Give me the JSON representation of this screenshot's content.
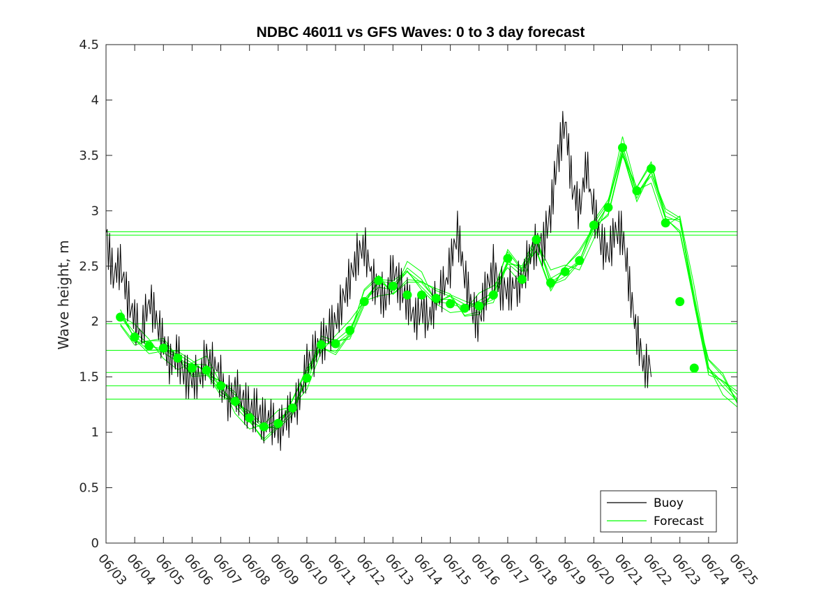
{
  "chart_data": {
    "type": "line",
    "title": "NDBC 46011 vs GFS Waves: 0 to 3 day forecast",
    "xlabel": "",
    "ylabel": "Wave height, m",
    "ylim": [
      0,
      4.5
    ],
    "yticks": [
      "0",
      "0.5",
      "1",
      "1.5",
      "2",
      "2.5",
      "3",
      "3.5",
      "4",
      "4.5"
    ],
    "xlim": [
      "06/03",
      "06/25"
    ],
    "xticks": [
      "06/03",
      "06/04",
      "06/05",
      "06/06",
      "06/07",
      "06/08",
      "06/09",
      "06/10",
      "06/11",
      "06/12",
      "06/13",
      "06/14",
      "06/15",
      "06/16",
      "06/17",
      "06/18",
      "06/19",
      "06/20",
      "06/21",
      "06/22",
      "06/23",
      "06/24",
      "06/25"
    ],
    "legend": {
      "position": "bottom-right",
      "entries": [
        "Buoy",
        "Forecast"
      ]
    },
    "colors": {
      "buoy": "#000000",
      "forecast": "#00ff00",
      "axes": "#262626"
    },
    "buoy_series": {
      "name": "Buoy",
      "day": [
        0.0,
        0.25,
        0.5,
        0.75,
        1.0,
        1.25,
        1.5,
        1.75,
        2.0,
        2.25,
        2.5,
        2.75,
        3.0,
        3.25,
        3.5,
        3.75,
        4.0,
        4.25,
        4.5,
        4.75,
        5.0,
        5.25,
        5.5,
        5.75,
        6.0,
        6.25,
        6.5,
        6.75,
        7.0,
        7.25,
        7.5,
        7.75,
        8.0,
        8.25,
        8.5,
        8.75,
        9.0,
        9.25,
        9.5,
        9.75,
        10.0,
        10.25,
        10.5,
        10.75,
        11.0,
        11.25,
        11.5,
        11.75,
        12.0,
        12.25,
        12.5,
        12.75,
        13.0,
        13.25,
        13.5,
        13.75,
        14.0,
        14.25,
        14.5,
        14.75,
        15.0,
        15.25,
        15.5,
        15.75,
        16.0,
        16.25,
        16.5,
        16.75,
        17.0,
        17.25,
        17.5,
        17.75,
        18.0,
        18.25,
        18.5,
        18.75,
        19.0,
        19.25,
        19.5,
        19.75,
        20.0,
        20.25,
        20.5,
        20.75,
        21.0,
        21.25,
        21.5,
        21.75,
        22.0
      ],
      "values": [
        2.8,
        2.4,
        2.5,
        2.2,
        2.0,
        1.9,
        2.2,
        2.0,
        1.8,
        1.6,
        1.7,
        1.5,
        1.5,
        1.5,
        1.7,
        1.6,
        1.5,
        1.3,
        1.4,
        1.3,
        1.2,
        1.2,
        1.1,
        1.1,
        1.0,
        1.1,
        1.2,
        1.3,
        1.6,
        1.7,
        1.8,
        1.9,
        2.0,
        2.2,
        2.4,
        2.6,
        2.7,
        2.4,
        2.3,
        2.2,
        2.5,
        2.3,
        2.2,
        2.0,
        2.1,
        2.0,
        2.2,
        2.3,
        2.5,
        2.8,
        2.4,
        2.1,
        2.0,
        2.3,
        2.5,
        2.3,
        2.3,
        2.3,
        2.4,
        2.6,
        2.7,
        2.7,
        3.0,
        3.5,
        3.8,
        3.2,
        3.0,
        3.4,
        3.0,
        2.7,
        2.6,
        2.8,
        2.8,
        2.3,
        1.9,
        1.6,
        1.6,
        null,
        null,
        null,
        null,
        null,
        null,
        null,
        null,
        null,
        null,
        null,
        null
      ]
    },
    "forecast_series": {
      "name": "Forecast",
      "day": [
        0.0,
        0.5,
        1.0,
        1.5,
        2.0,
        2.5,
        3.0,
        3.5,
        4.0,
        4.5,
        5.0,
        5.5,
        6.0,
        6.5,
        7.0,
        7.5,
        8.0,
        8.5,
        9.0,
        9.5,
        10.0,
        10.5,
        11.0,
        11.5,
        12.0,
        12.5,
        13.0,
        13.5,
        14.0,
        14.5,
        15.0,
        15.5,
        16.0,
        16.5,
        17.0,
        17.5,
        18.0,
        18.5,
        19.0,
        19.5,
        20.0,
        20.5,
        21.0,
        21.5,
        22.0
      ],
      "values": [
        null,
        2.05,
        1.86,
        1.78,
        1.75,
        1.67,
        1.6,
        1.57,
        1.4,
        1.27,
        1.12,
        1.02,
        1.08,
        1.22,
        1.5,
        1.8,
        1.8,
        1.9,
        2.2,
        2.35,
        2.3,
        2.45,
        2.35,
        2.2,
        2.2,
        2.12,
        2.15,
        2.24,
        2.55,
        2.45,
        2.72,
        2.35,
        2.45,
        2.55,
        2.85,
        3.05,
        3.55,
        3.15,
        3.35,
        2.95,
        2.9,
        2.2,
        1.58,
        1.45,
        1.3
      ]
    },
    "forecast_flat_lines": [
      2.81,
      2.78,
      1.98,
      1.74,
      1.54,
      1.42,
      1.3
    ],
    "markers": {
      "name": "Forecast",
      "day": [
        0.5,
        1.0,
        1.5,
        2.0,
        2.5,
        3.0,
        3.5,
        4.0,
        4.5,
        5.0,
        5.5,
        6.0,
        6.5,
        7.0,
        7.5,
        8.0,
        8.5,
        9.0,
        9.5,
        10.0,
        10.5,
        11.0,
        11.5,
        12.0,
        12.5,
        13.0,
        13.5,
        14.0,
        14.5,
        15.0,
        15.5,
        16.0,
        16.5,
        17.0,
        17.5,
        18.0,
        18.5,
        19.0,
        19.5,
        20.0,
        20.5,
        21.0
      ],
      "values": [
        2.04,
        1.86,
        1.78,
        1.76,
        1.67,
        1.58,
        1.56,
        1.42,
        1.28,
        1.13,
        1.05,
        1.08,
        1.22,
        1.49,
        1.79,
        1.8,
        1.92,
        2.18,
        2.37,
        2.32,
        2.24,
        2.24,
        2.21,
        2.16,
        2.12,
        2.14,
        2.24,
        2.57,
        2.38,
        2.74,
        2.35,
        2.45,
        2.55,
        2.87,
        3.03,
        3.57,
        3.18,
        3.38,
        2.89,
        2.18,
        1.58,
        null
      ]
    }
  }
}
